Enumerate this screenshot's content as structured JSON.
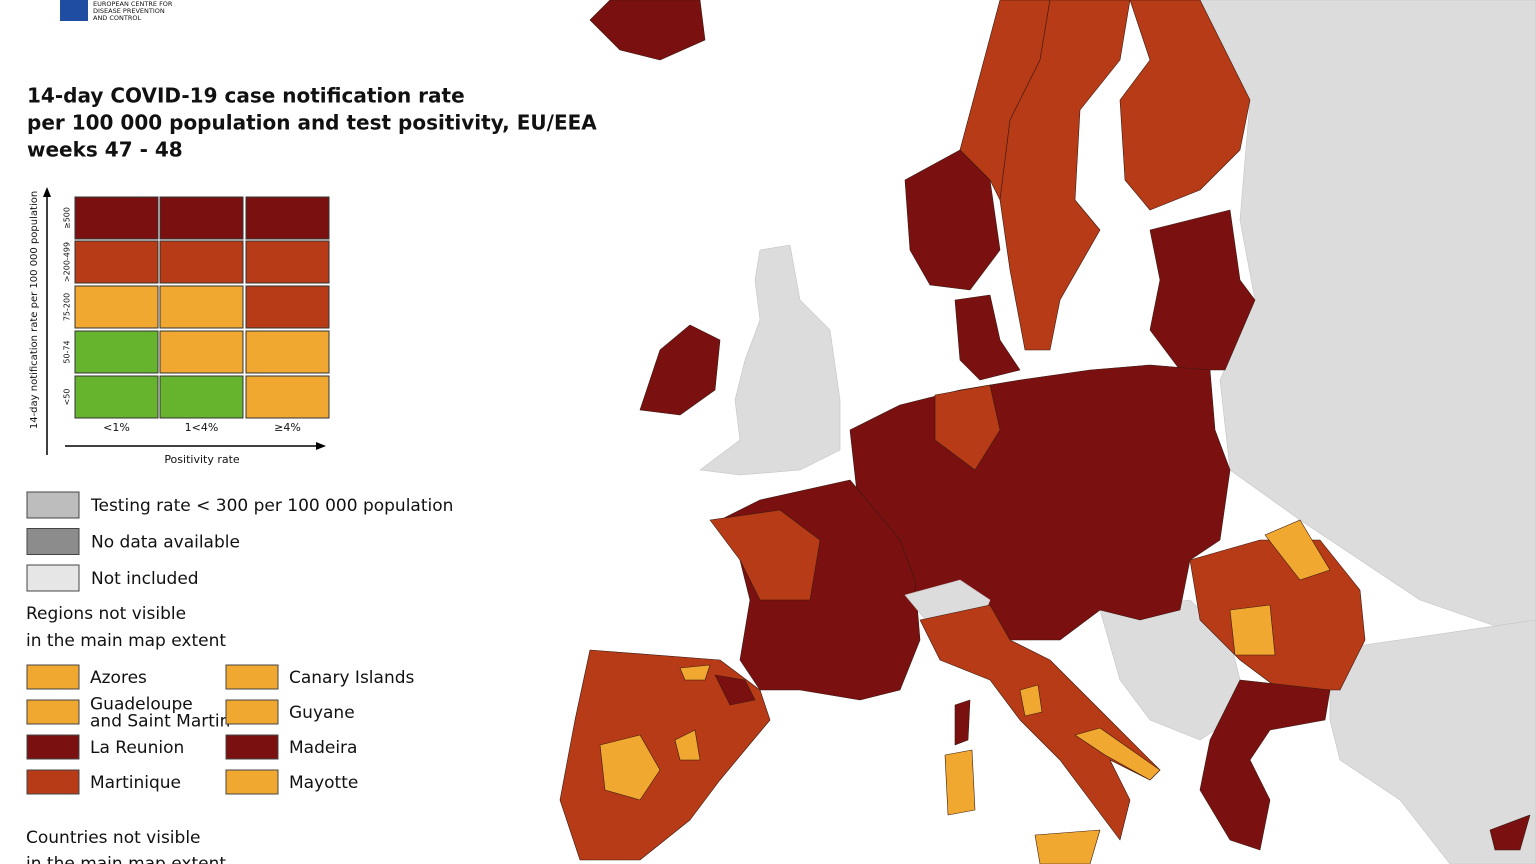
{
  "header": {
    "org_lines": [
      "EUROPEAN CENTRE FOR",
      "DISEASE PREVENTION",
      "AND CONTROL"
    ],
    "title_lines": [
      "14-day COVID-19 case notification rate",
      "per 100 000 population and test positivity, EU/EEA",
      "weeks 47 - 48"
    ]
  },
  "matrix": {
    "y_label": "14-day notification rate per 100 000 population",
    "x_label": "Positivity rate",
    "row_labels": [
      "≥500",
      ">200-499",
      "75-200",
      "50-74",
      "<50"
    ],
    "col_labels": [
      "<1%",
      "1<4%",
      "≥4%"
    ],
    "cell_colors": [
      [
        "#7a1010",
        "#7a1010",
        "#7a1010"
      ],
      [
        "#b63b16",
        "#b63b16",
        "#b63b16"
      ],
      [
        "#f0a830",
        "#f0a830",
        "#b63b16"
      ],
      [
        "#66b32e",
        "#f0a830",
        "#f0a830"
      ],
      [
        "#66b32e",
        "#66b32e",
        "#f0a830"
      ]
    ]
  },
  "legend": [
    {
      "label": "Testing rate < 300 per 100 000 population",
      "color": "#bdbdbd"
    },
    {
      "label": "No data available",
      "color": "#8c8c8c"
    },
    {
      "label": "Not included",
      "color": "#e6e6e6"
    }
  ],
  "regions": {
    "title_lines": [
      "Regions not visible",
      "in the main map extent"
    ],
    "items": [
      {
        "label": [
          "Azores"
        ],
        "color": "#f0a830"
      },
      {
        "label": [
          "Canary Islands"
        ],
        "color": "#f0a830"
      },
      {
        "label": [
          "Guadeloupe",
          "and Saint Martin"
        ],
        "color": "#f0a830"
      },
      {
        "label": [
          "Guyane"
        ],
        "color": "#f0a830"
      },
      {
        "label": [
          "La Reunion"
        ],
        "color": "#7a1010"
      },
      {
        "label": [
          "Madeira"
        ],
        "color": "#7a1010"
      },
      {
        "label": [
          "Martinique"
        ],
        "color": "#b63b16"
      },
      {
        "label": [
          "Mayotte"
        ],
        "color": "#f0a830"
      }
    ]
  },
  "countries": {
    "title_lines": [
      "Countries not visible",
      "in the main map extent"
    ]
  }
}
